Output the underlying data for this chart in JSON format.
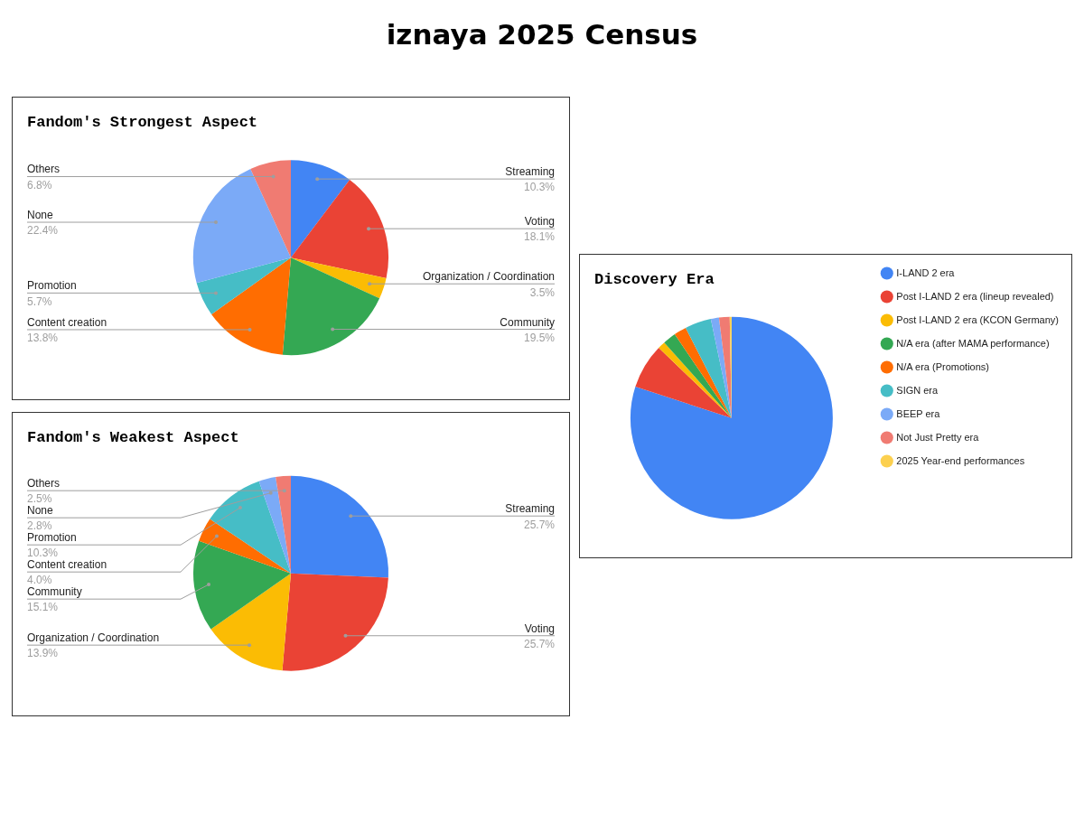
{
  "chart_data": [
    {
      "type": "other",
      "title": "iznaya 2025 Census"
    },
    {
      "type": "pie",
      "title": "Fandom's Strongest Aspect",
      "categories": [
        "Streaming",
        "Voting",
        "Organization / Coordination",
        "Community",
        "Content creation",
        "Promotion",
        "None",
        "Others"
      ],
      "values": [
        10.3,
        18.1,
        3.5,
        19.5,
        13.8,
        5.7,
        22.4,
        6.8
      ],
      "colors": [
        "#4285f4",
        "#ea4335",
        "#fbbc04",
        "#34a853",
        "#ff6d01",
        "#46bdc6",
        "#7baaf7",
        "#f07b72"
      ],
      "value_labels": [
        "10.3%",
        "18.1%",
        "3.5%",
        "19.5%",
        "13.8%",
        "5.7%",
        "22.4%",
        "6.8%"
      ]
    },
    {
      "type": "pie",
      "title": "Fandom's Weakest Aspect",
      "categories": [
        "Streaming",
        "Voting",
        "Organization / Coordination",
        "Community",
        "Content creation",
        "Promotion",
        "None",
        "Others"
      ],
      "values": [
        25.7,
        25.7,
        13.9,
        15.1,
        4.0,
        10.3,
        2.8,
        2.5
      ],
      "colors": [
        "#4285f4",
        "#ea4335",
        "#fbbc04",
        "#34a853",
        "#ff6d01",
        "#46bdc6",
        "#7baaf7",
        "#f07b72"
      ],
      "value_labels": [
        "25.7%",
        "25.7%",
        "13.9%",
        "15.1%",
        "4.0%",
        "10.3%",
        "2.8%",
        "2.5%"
      ]
    },
    {
      "type": "pie",
      "title": "Discovery Era",
      "categories": [
        "I-LAND 2 era",
        "Post I-LAND 2 era (lineup revealed)",
        "Post I-LAND 2 era (KCON Germany)",
        "N/A era (after MAMA performance)",
        "N/A era (Promotions)",
        "SIGN era",
        "BEEP era",
        "Not Just Pretty era",
        "2025 Year-end performances"
      ],
      "values": [
        80,
        7.2,
        1.2,
        2.1,
        2,
        4.2,
        1.3,
        1.7,
        0.3
      ],
      "colors": [
        "#4285f4",
        "#ea4335",
        "#fbbc04",
        "#34a853",
        "#ff6d01",
        "#46bdc6",
        "#7baaf7",
        "#f07b72",
        "#fcd04f"
      ],
      "legend": "right"
    }
  ]
}
